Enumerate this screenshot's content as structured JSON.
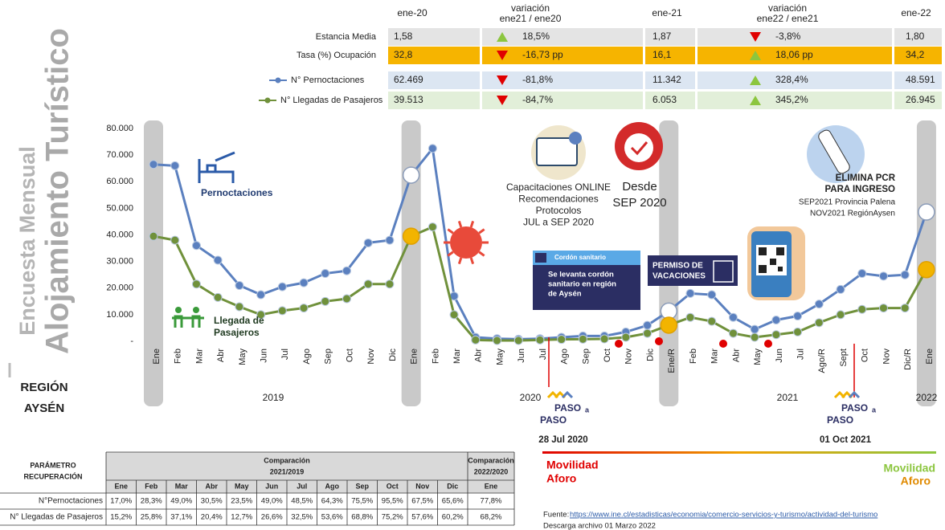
{
  "side_title": {
    "line1": "Encuesta Mensual",
    "line2": "Alojamiento Turístico",
    "region": [
      "REGIÓN",
      "AYSÉN"
    ]
  },
  "summary_table": {
    "columns": [
      [
        "ene-20"
      ],
      [
        "variación",
        "ene21 / ene20"
      ],
      [
        "ene-21"
      ],
      [
        "variación",
        "ene22 / ene21"
      ],
      [
        "ene-22"
      ]
    ],
    "rows": [
      {
        "label": "Estancia Media",
        "color": "#e4e4e4",
        "cells": [
          "1,58",
          {
            "text": "18,5%",
            "dir": "up"
          },
          "1,87",
          {
            "text": "-3,8%",
            "dir": "down"
          },
          "1,80"
        ]
      },
      {
        "label": "Tasa (%) Ocupación",
        "color": "#f6b400",
        "cells": [
          "32,8",
          {
            "text": "-16,73 pp",
            "dir": "down"
          },
          "16,1",
          {
            "text": "18,06 pp",
            "dir": "up"
          },
          "34,2"
        ]
      },
      {
        "color": "#dce6f2",
        "cells": [
          "62.469",
          {
            "text": "-81,8%",
            "dir": "down"
          },
          "11.342",
          {
            "text": "328,4%",
            "dir": "up"
          },
          "48.591"
        ]
      },
      {
        "color": "#e2efd9",
        "cells": [
          "39.513",
          {
            "text": "-84,7%",
            "dir": "down"
          },
          "6.053",
          {
            "text": "345,2%",
            "dir": "up"
          },
          "26.945"
        ]
      }
    ]
  },
  "chart_data": {
    "type": "line",
    "categories": [
      "Ene",
      "Feb",
      "Mar",
      "Abr",
      "May",
      "Jun",
      "Jul",
      "Ago",
      "Sep",
      "Oct",
      "Nov",
      "Dic",
      "Ene",
      "Feb",
      "Mar",
      "Abr",
      "May",
      "Jun",
      "Jul",
      "Ago",
      "Sep",
      "Oct",
      "Nov",
      "Dic",
      "Ene/R",
      "Feb",
      "Mar",
      "Abr",
      "May",
      "Jun",
      "Jul",
      "Ago/R",
      "Sept",
      "Oct",
      "Nov",
      "Dic/R",
      "Ene"
    ],
    "years": [
      "2019",
      "2020",
      "2021",
      "2022"
    ],
    "series": [
      {
        "name": "N° Pernoctaciones",
        "color": "#5b80bf",
        "values": [
          66500,
          66000,
          36000,
          30500,
          21000,
          17500,
          20500,
          22000,
          25500,
          26500,
          37000,
          38000,
          62469,
          72500,
          17000,
          1500,
          1000,
          800,
          1000,
          1500,
          2000,
          2000,
          3500,
          6000,
          11342,
          18000,
          17500,
          9000,
          4500,
          8000,
          9500,
          14000,
          19500,
          25500,
          24500,
          25000,
          48591
        ]
      },
      {
        "name": "N° Llegadas de Pasajeros",
        "color": "#70913b",
        "values": [
          39500,
          38000,
          21500,
          16500,
          13000,
          10000,
          11500,
          12500,
          15000,
          16000,
          21500,
          21500,
          39513,
          43000,
          10000,
          500,
          300,
          300,
          500,
          700,
          800,
          900,
          1500,
          3000,
          6053,
          9000,
          7500,
          3000,
          1500,
          2500,
          3500,
          7000,
          10000,
          12000,
          12500,
          12500,
          26945
        ]
      }
    ],
    "ylim": [
      0,
      80000
    ],
    "yticks": [
      {
        "value": 0,
        "label": "-"
      },
      {
        "value": 10000,
        "label": "10.000"
      },
      {
        "value": 20000,
        "label": "20.000"
      },
      {
        "value": 30000,
        "label": "30.000"
      },
      {
        "value": 40000,
        "label": "40.000"
      },
      {
        "value": 50000,
        "label": "50.000"
      },
      {
        "value": 60000,
        "label": "60.000"
      },
      {
        "value": 70000,
        "label": "70.000"
      },
      {
        "value": 80000,
        "label": "80.000"
      }
    ],
    "grid": false
  },
  "annotations": {
    "pernoctaciones": "Pernoctaciones",
    "llegadas": [
      "Llegada de",
      "Pasajeros"
    ],
    "capacitaciones": [
      "Capacitaciones ONLINE",
      "Recomendaciones",
      "Protocolos",
      "JUL a SEP 2020"
    ],
    "desde": [
      "Desde",
      "SEP 2020"
    ],
    "pcr": [
      "ELIMINA PCR",
      "PARA INGRESO",
      "SEP2021 Provincia Palena",
      "NOV2021 RegiónAysen"
    ],
    "cordon_header": "Cordón sanitario",
    "cordon": [
      "Se levanta cordón",
      "sanitario en región",
      "de Aysén"
    ],
    "permiso": [
      "PERMISO DE",
      "VACACIONES"
    ],
    "paso_logo": [
      "PASO",
      "a",
      "PASO"
    ],
    "date1": "28 Jul 2020",
    "date2": "01 Oct 2021",
    "movilidad_left": [
      "Movilidad",
      "Aforo"
    ],
    "movilidad_right": [
      "Movilidad",
      "Aforo"
    ]
  },
  "recovery_table": {
    "header": [
      "PARÁMETRO",
      "RECUPERACIÓN"
    ],
    "groups": [
      [
        "Comparación",
        "2021/2019"
      ],
      [
        "Comparación",
        "2022/2020"
      ]
    ],
    "months": [
      "Ene",
      "Feb",
      "Mar",
      "Abr",
      "May",
      "Jun",
      "Jul",
      "Ago",
      "Sep",
      "Oct",
      "Nov",
      "Dic",
      "Ene"
    ],
    "rows": [
      {
        "label": "N°Pernoctaciones",
        "values": [
          "17,0%",
          "28,3%",
          "49,0%",
          "30,5%",
          "23,5%",
          "49,0%",
          "48,5%",
          "64,3%",
          "75,5%",
          "95,5%",
          "67,5%",
          "65,6%",
          "77,8%"
        ]
      },
      {
        "label": "N° Llegadas de Pasajeros",
        "values": [
          "15,2%",
          "25,8%",
          "37,1%",
          "20,4%",
          "12,7%",
          "26,6%",
          "32,5%",
          "53,6%",
          "68,8%",
          "75,2%",
          "57,6%",
          "60,2%",
          "68,2%"
        ]
      }
    ]
  },
  "source": {
    "label": "Fuente:",
    "url": "https://www.ine.cl/estadisticas/economia/comercio-servicios-y-turismo/actividad-del-turismo",
    "download": "Descarga archivo 01 Marzo 2022"
  }
}
